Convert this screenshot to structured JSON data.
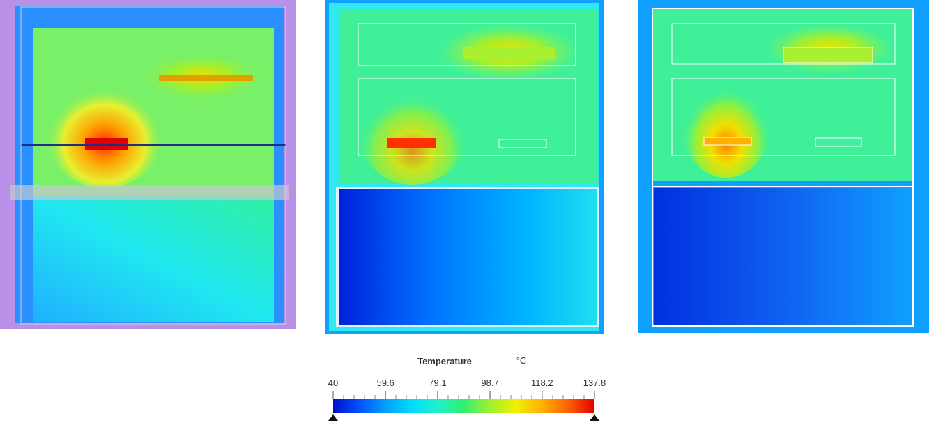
{
  "colorbar": {
    "title": "Temperature",
    "unit": "°C",
    "lim": [
      40,
      137.8
    ],
    "ticks": [
      40,
      59.6,
      79.1,
      98.7,
      118.2,
      137.8
    ],
    "colormap": [
      "#0010c8",
      "#0050ff",
      "#00a0ff",
      "#00dcff",
      "#20f0c8",
      "#30f070",
      "#a0f030",
      "#f0f000",
      "#ffb000",
      "#ff6000",
      "#e00000"
    ]
  }
}
